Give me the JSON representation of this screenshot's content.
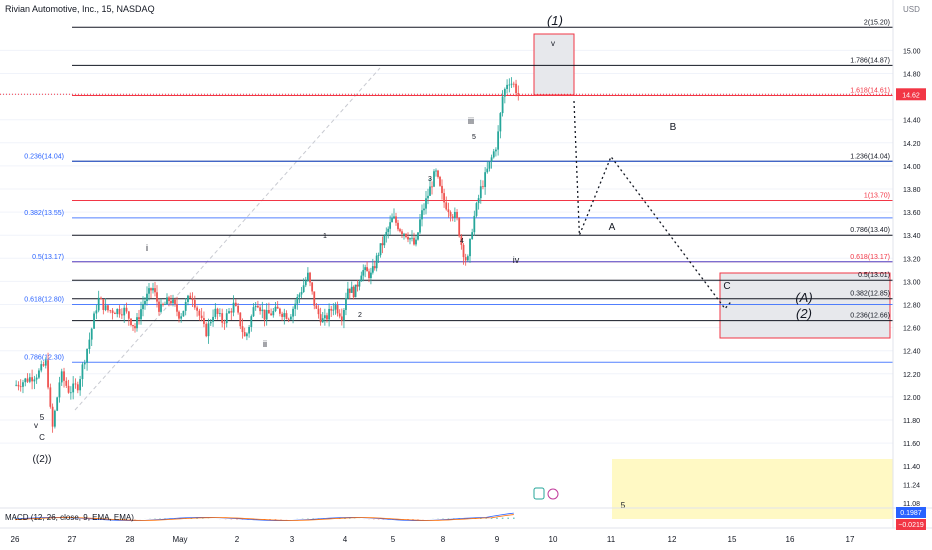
{
  "header": {
    "title": "Rivian Automotive, Inc., 15, NASDAQ",
    "currency": "USD"
  },
  "colors": {
    "up": "#26a69a",
    "down": "#ef5350",
    "fib_black": "#131722",
    "fib_blue": "#2962ff",
    "fib_red": "#f23645",
    "macd": "#2962ff",
    "signal": "#ff6d00",
    "highlight": "#fff9c4"
  },
  "chart_data": {
    "type": "candlestick",
    "title": "Rivian Automotive, Inc., 15, NASDAQ",
    "ylabel": "USD",
    "ylim": [
      10.95,
      15.45
    ],
    "y_ticks": [
      15.0,
      14.8,
      14.62,
      14.4,
      14.2,
      14.0,
      13.8,
      13.6,
      13.4,
      13.2,
      13.0,
      12.8,
      12.6,
      12.4,
      12.2,
      12.0,
      11.8,
      11.6,
      11.4,
      11.24,
      11.08
    ],
    "last_price": "14.62",
    "x_ticks": [
      "26",
      "27",
      "28",
      "May",
      "2",
      "3",
      "4",
      "5",
      "8",
      "9",
      "10",
      "11",
      "12",
      "15",
      "16",
      "17"
    ],
    "price_path": [
      [
        0,
        12.1
      ],
      [
        0.4,
        12.2
      ],
      [
        0.55,
        12.3
      ],
      [
        0.65,
        11.7
      ],
      [
        0.8,
        12.2
      ],
      [
        0.95,
        12.05
      ],
      [
        1.1,
        12.1
      ],
      [
        1.3,
        12.5
      ],
      [
        1.45,
        12.85
      ],
      [
        1.6,
        12.75
      ],
      [
        1.9,
        12.75
      ],
      [
        2.1,
        12.6
      ],
      [
        2.25,
        12.8
      ],
      [
        2.45,
        12.95
      ],
      [
        2.6,
        12.75
      ],
      [
        2.8,
        12.85
      ],
      [
        3.0,
        12.7
      ],
      [
        3.2,
        12.9
      ],
      [
        3.45,
        12.55
      ],
      [
        3.6,
        12.75
      ],
      [
        3.75,
        12.65
      ],
      [
        3.95,
        12.8
      ],
      [
        4.15,
        12.5
      ],
      [
        4.35,
        12.85
      ],
      [
        4.5,
        12.7
      ],
      [
        4.75,
        12.75
      ],
      [
        4.95,
        12.7
      ],
      [
        5.1,
        12.85
      ],
      [
        5.3,
        13.05
      ],
      [
        5.45,
        12.75
      ],
      [
        5.6,
        12.65
      ],
      [
        5.8,
        12.8
      ],
      [
        5.95,
        12.7
      ],
      [
        6.05,
        12.95
      ],
      [
        6.2,
        12.9
      ],
      [
        6.35,
        13.1
      ],
      [
        6.55,
        13.05
      ],
      [
        6.7,
        13.25
      ],
      [
        6.85,
        13.4
      ],
      [
        7.0,
        13.55
      ],
      [
        7.15,
        13.45
      ],
      [
        7.3,
        13.4
      ],
      [
        7.45,
        13.3
      ],
      [
        7.55,
        13.55
      ],
      [
        7.7,
        13.75
      ],
      [
        7.85,
        13.95
      ],
      [
        8.0,
        13.7
      ],
      [
        8.15,
        13.6
      ],
      [
        8.25,
        13.55
      ],
      [
        8.35,
        13.3
      ],
      [
        8.45,
        13.15
      ],
      [
        8.55,
        13.5
      ],
      [
        8.7,
        13.8
      ],
      [
        8.85,
        14.0
      ],
      [
        9.0,
        14.2
      ],
      [
        9.1,
        14.6
      ],
      [
        9.2,
        14.75
      ],
      [
        9.3,
        14.7
      ],
      [
        9.38,
        14.62
      ]
    ]
  },
  "levels_right": [
    {
      "label": "2(15.20)",
      "value": 15.2,
      "color": "black"
    },
    {
      "label": "1.786(14.87)",
      "value": 14.87,
      "color": "black"
    },
    {
      "label": "1.618(14.61)",
      "value": 14.61,
      "color": "red"
    },
    {
      "label": "1.236(14.04)",
      "value": 14.04,
      "color": "black"
    },
    {
      "label": "1(13.70)",
      "value": 13.7,
      "color": "red"
    },
    {
      "label": "0.786(13.40)",
      "value": 13.4,
      "color": "black"
    },
    {
      "label": "0.618(13.17)",
      "value": 13.17,
      "color": "red"
    },
    {
      "label": "0.5(13.01)",
      "value": 13.01,
      "color": "black"
    },
    {
      "label": "0.382(12.85)",
      "value": 12.85,
      "color": "black"
    },
    {
      "label": "0.236(12.66)",
      "value": 12.66,
      "color": "black"
    }
  ],
  "levels_left": [
    {
      "label": "0.236(14.04)",
      "value": 14.04
    },
    {
      "label": "0.382(13.55)",
      "value": 13.55
    },
    {
      "label": "0.5(13.17)",
      "value": 13.17
    },
    {
      "label": "0.618(12.80)",
      "value": 12.8
    },
    {
      "label": "0.786(12.30)",
      "value": 12.3
    }
  ],
  "wave_labels": [
    "(1)",
    "v",
    "iii",
    "5",
    "3",
    "1",
    "i",
    "ii",
    "iv",
    "4",
    "2",
    "A",
    "B",
    "C",
    "(A)",
    "(2)",
    "5",
    "v",
    "5",
    "C",
    "((2))"
  ],
  "projection": {
    "from": 9.4,
    "A": 13.4,
    "B": 14.08,
    "C": 12.92
  },
  "macd": {
    "label": "MACD (12, 26, close, 9, EMA, EMA)",
    "value": "0.1987",
    "signal_value": "−0.0219"
  }
}
